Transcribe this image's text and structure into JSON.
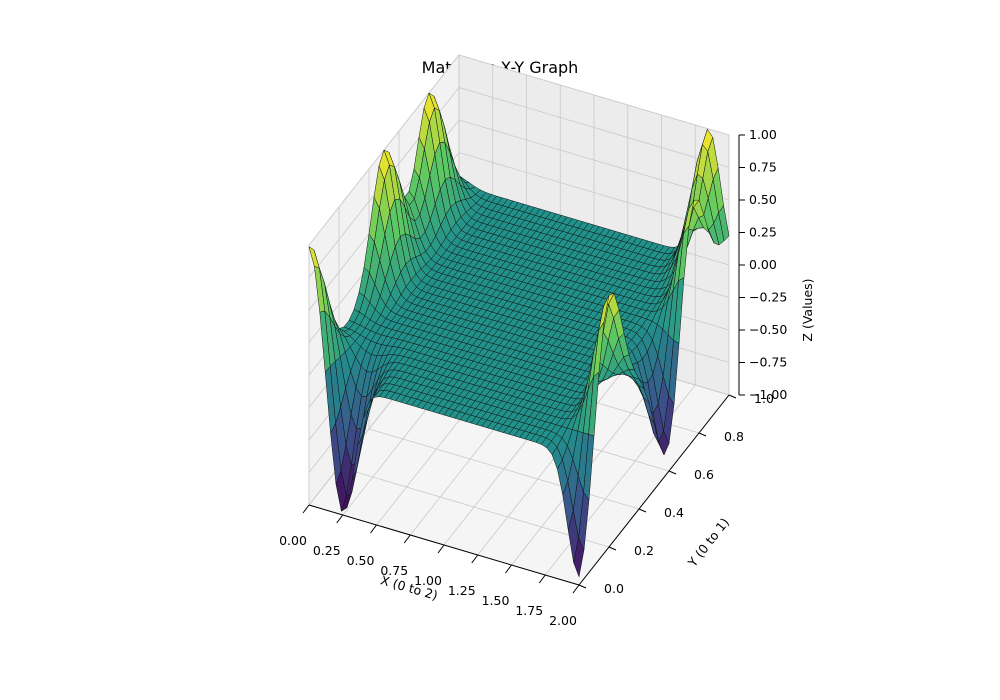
{
  "chart_data": {
    "type": "surface3d",
    "title": "Matrix as X-Y Graph",
    "xlabel": "X (0 to 2)",
    "ylabel": "Y (0 to 1)",
    "zlabel": "Z (Values)",
    "xlim": [
      0,
      2
    ],
    "ylim": [
      0,
      1
    ],
    "zlim": [
      -1,
      1
    ],
    "x_ticks": [
      "0.00",
      "0.25",
      "0.50",
      "0.75",
      "1.00",
      "1.25",
      "1.50",
      "1.75",
      "2.00"
    ],
    "y_ticks": [
      "0.0",
      "0.2",
      "0.4",
      "0.6",
      "0.8",
      "1.0"
    ],
    "z_ticks": [
      "−1.00",
      "−0.75",
      "−0.50",
      "−0.25",
      "0.00",
      "0.25",
      "0.50",
      "0.75",
      "1.00"
    ],
    "colormap": "viridis",
    "grid": true,
    "features": [
      {
        "edge": "y = 0",
        "x": 0.0,
        "z": 1.0
      },
      {
        "edge": "y = 0",
        "x": 0.25,
        "z": -1.0
      },
      {
        "edge": "x = 2",
        "y": 0.0,
        "z": -1.0
      },
      {
        "edge": "x = 2",
        "y": 0.2,
        "z": 1.0
      },
      {
        "edge": "x = 2",
        "y": 0.6,
        "z": -1.0
      },
      {
        "edge": "x = 2",
        "y": 0.75,
        "z": 1.0
      },
      {
        "edge": "x = 0",
        "y": 0.5,
        "z": 1.0
      },
      {
        "edge": "x = 0",
        "y": 0.8,
        "z": 1.0
      },
      {
        "edge": "y = 1",
        "x": 1.85,
        "z": 1.0
      }
    ]
  }
}
